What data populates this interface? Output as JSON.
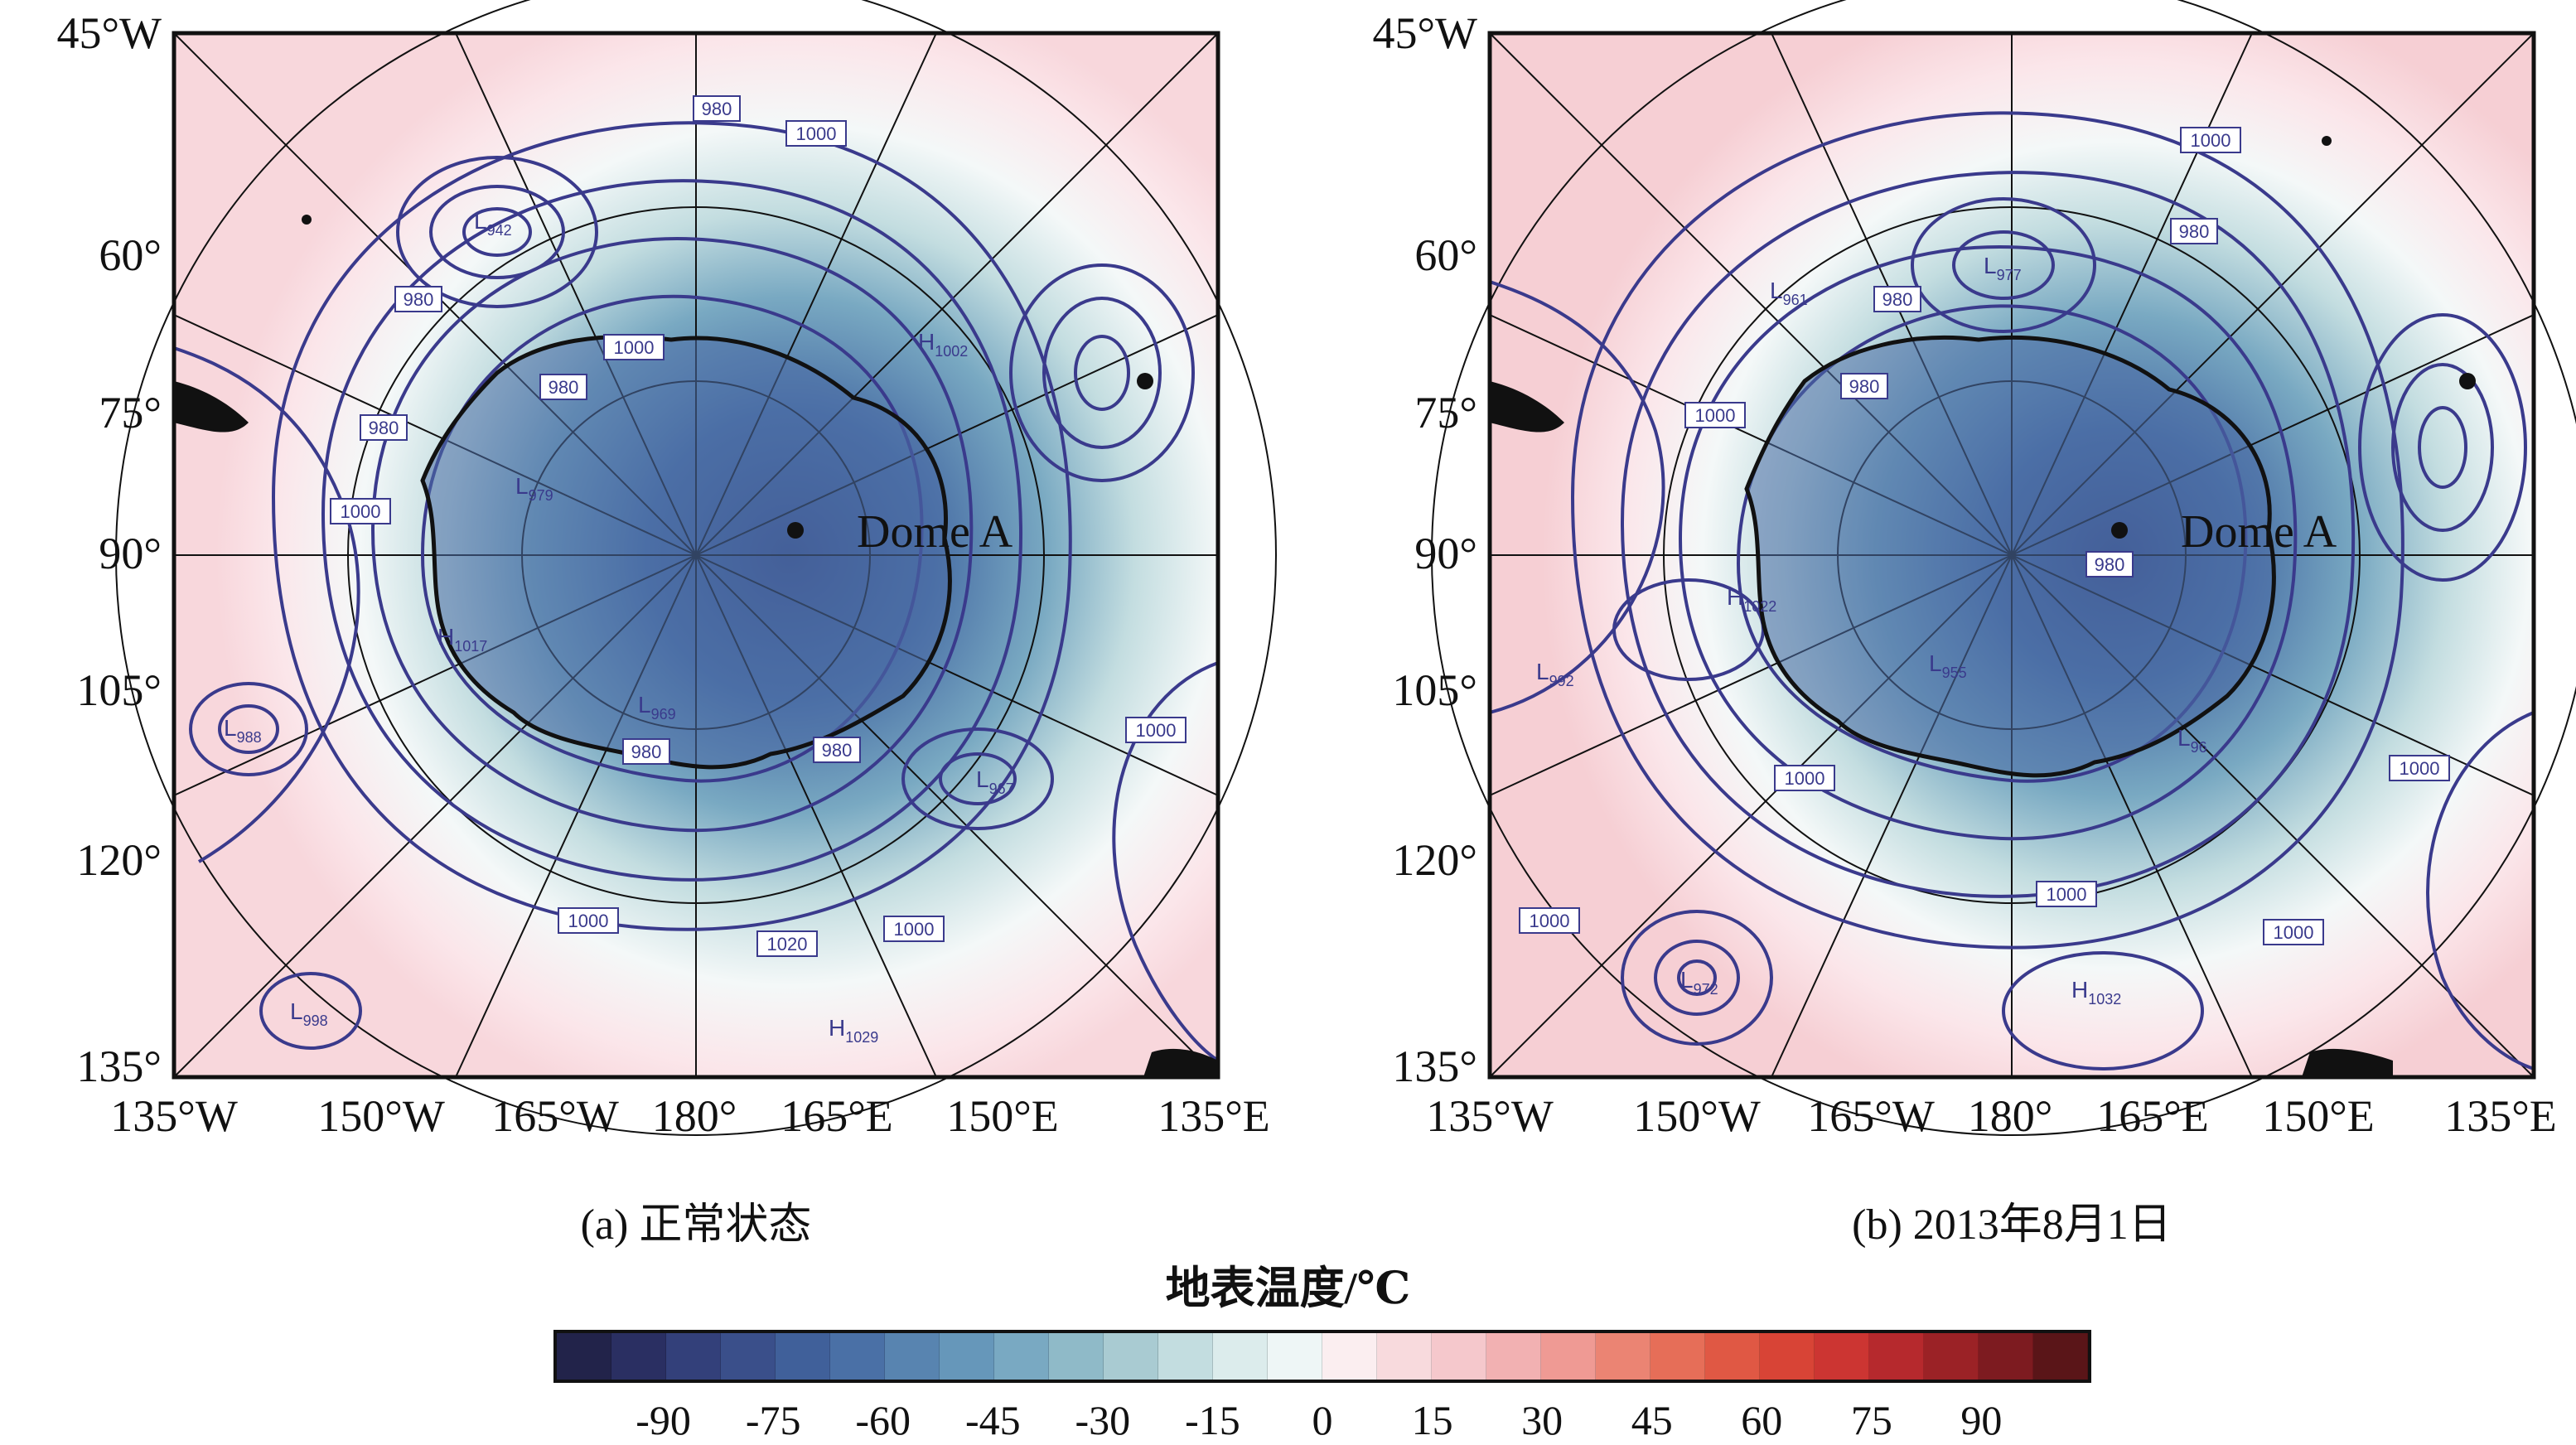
{
  "panels": [
    {
      "id": "a",
      "caption": "(a) 正常状态",
      "dome_label": "Dome A",
      "lat_labels": [
        "45°W",
        "60°",
        "75°",
        "90°",
        "105°",
        "120°",
        "135°"
      ],
      "lon_labels": [
        "135°W",
        "150°W",
        "165°W",
        "180°",
        "165°E",
        "150°E",
        "135°E"
      ],
      "isobar_labels": [
        "980",
        "1000",
        "980",
        "980",
        "980",
        "980",
        "1000",
        "1000",
        "980",
        "1000",
        "1020",
        "1000",
        "1000"
      ],
      "pressure_centers": [
        {
          "type": "L",
          "value": "942"
        },
        {
          "type": "H",
          "value": "1002"
        },
        {
          "type": "L",
          "value": "979"
        },
        {
          "type": "H",
          "value": "1017"
        },
        {
          "type": "L",
          "value": "969"
        },
        {
          "type": "L",
          "value": "967"
        },
        {
          "type": "H",
          "value": "1029"
        },
        {
          "type": "L",
          "value": "988"
        },
        {
          "type": "L",
          "value": "998"
        }
      ]
    },
    {
      "id": "b",
      "caption": "(b) 2013年8月1日",
      "dome_label": "Dome A",
      "lat_labels": [
        "45°W",
        "60°",
        "75°",
        "90°",
        "105°",
        "120°",
        "135°"
      ],
      "lon_labels": [
        "135°W",
        "150°W",
        "165°W",
        "180°",
        "165°E",
        "150°E",
        "135°E"
      ],
      "isobar_labels": [
        "1000",
        "980",
        "980",
        "980",
        "1000",
        "980",
        "1000",
        "1000",
        "1000",
        "1000",
        "1000"
      ],
      "pressure_centers": [
        {
          "type": "L",
          "value": "977"
        },
        {
          "type": "L",
          "value": "961"
        },
        {
          "type": "H",
          "value": "1022"
        },
        {
          "type": "L",
          "value": "992"
        },
        {
          "type": "L",
          "value": "955"
        },
        {
          "type": "L",
          "value": "972"
        },
        {
          "type": "H",
          "value": "1032"
        },
        {
          "type": "L",
          "value": "96"
        }
      ]
    }
  ],
  "colorbar": {
    "title": "地表温度/℃",
    "ticks": [
      "-90",
      "-75",
      "-60",
      "-45",
      "-30",
      "-15",
      "0",
      "15",
      "30",
      "45",
      "60",
      "75",
      "90"
    ],
    "colors": [
      "#22234a",
      "#2a2f62",
      "#33407a",
      "#3a4f8a",
      "#40609a",
      "#4a70a6",
      "#5884b0",
      "#6697ba",
      "#79a9c2",
      "#8fbac8",
      "#a9cbd2",
      "#c3dde0",
      "#dcecec",
      "#eef6f6",
      "#fbeef0",
      "#f8dadd",
      "#f5c8cc",
      "#f2b1b2",
      "#ef9a94",
      "#eb8473",
      "#e66e58",
      "#e05844",
      "#d84436",
      "#cc3532",
      "#b6292d",
      "#9b2226",
      "#7d1b20",
      "#5a1518"
    ],
    "isobar_color": "#3a3a8c"
  }
}
